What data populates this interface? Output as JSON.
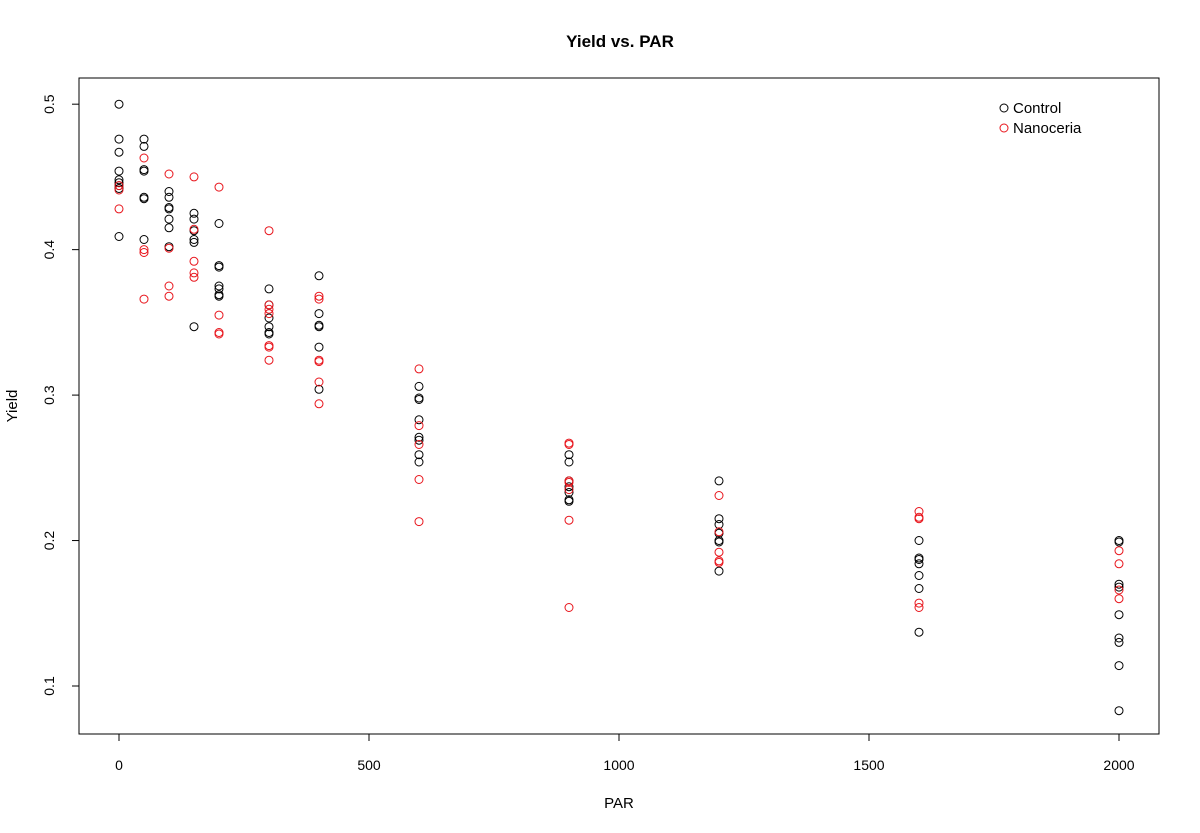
{
  "chart_data": {
    "type": "scatter",
    "title": "Yield vs. PAR",
    "xlabel": "PAR",
    "ylabel": "Yield",
    "xlim": [
      -80,
      2080
    ],
    "ylim": [
      0.067,
      0.518
    ],
    "xticks": [
      0,
      500,
      1000,
      1500,
      2000
    ],
    "xtick_labels": [
      "0",
      "500",
      "1000",
      "1500",
      "2000"
    ],
    "yticks": [
      0.1,
      0.2,
      0.3,
      0.4,
      0.5
    ],
    "ytick_labels": [
      "0.1",
      "0.2",
      "0.3",
      "0.4",
      "0.5"
    ],
    "grid": false,
    "legend": {
      "position": "top-right"
    },
    "series": [
      {
        "name": "Control",
        "color": "#000000",
        "points": [
          [
            0,
            0.5
          ],
          [
            0,
            0.476
          ],
          [
            0,
            0.467
          ],
          [
            0,
            0.454
          ],
          [
            0,
            0.448
          ],
          [
            0,
            0.446
          ],
          [
            0,
            0.444
          ],
          [
            0,
            0.442
          ],
          [
            0,
            0.409
          ],
          [
            50,
            0.476
          ],
          [
            50,
            0.471
          ],
          [
            50,
            0.455
          ],
          [
            50,
            0.454
          ],
          [
            50,
            0.436
          ],
          [
            50,
            0.435
          ],
          [
            50,
            0.407
          ],
          [
            100,
            0.44
          ],
          [
            100,
            0.436
          ],
          [
            100,
            0.429
          ],
          [
            100,
            0.428
          ],
          [
            100,
            0.421
          ],
          [
            100,
            0.415
          ],
          [
            100,
            0.402
          ],
          [
            150,
            0.425
          ],
          [
            150,
            0.421
          ],
          [
            150,
            0.413
          ],
          [
            150,
            0.407
          ],
          [
            150,
            0.405
          ],
          [
            150,
            0.347
          ],
          [
            200,
            0.418
          ],
          [
            200,
            0.389
          ],
          [
            200,
            0.388
          ],
          [
            200,
            0.375
          ],
          [
            200,
            0.373
          ],
          [
            200,
            0.369
          ],
          [
            200,
            0.368
          ],
          [
            300,
            0.373
          ],
          [
            300,
            0.362
          ],
          [
            300,
            0.353
          ],
          [
            300,
            0.347
          ],
          [
            300,
            0.343
          ],
          [
            300,
            0.342
          ],
          [
            400,
            0.382
          ],
          [
            400,
            0.356
          ],
          [
            400,
            0.348
          ],
          [
            400,
            0.347
          ],
          [
            400,
            0.333
          ],
          [
            400,
            0.304
          ],
          [
            600,
            0.306
          ],
          [
            600,
            0.298
          ],
          [
            600,
            0.297
          ],
          [
            600,
            0.283
          ],
          [
            600,
            0.271
          ],
          [
            600,
            0.269
          ],
          [
            600,
            0.259
          ],
          [
            600,
            0.254
          ],
          [
            900,
            0.259
          ],
          [
            900,
            0.254
          ],
          [
            900,
            0.241
          ],
          [
            900,
            0.237
          ],
          [
            900,
            0.233
          ],
          [
            900,
            0.228
          ],
          [
            900,
            0.227
          ],
          [
            1200,
            0.241
          ],
          [
            1200,
            0.215
          ],
          [
            1200,
            0.211
          ],
          [
            1200,
            0.205
          ],
          [
            1200,
            0.2
          ],
          [
            1200,
            0.199
          ],
          [
            1200,
            0.179
          ],
          [
            1600,
            0.2
          ],
          [
            1600,
            0.188
          ],
          [
            1600,
            0.187
          ],
          [
            1600,
            0.184
          ],
          [
            1600,
            0.176
          ],
          [
            1600,
            0.167
          ],
          [
            1600,
            0.137
          ],
          [
            2000,
            0.2
          ],
          [
            2000,
            0.199
          ],
          [
            2000,
            0.17
          ],
          [
            2000,
            0.168
          ],
          [
            2000,
            0.149
          ],
          [
            2000,
            0.133
          ],
          [
            2000,
            0.13
          ],
          [
            2000,
            0.114
          ],
          [
            2000,
            0.083
          ]
        ]
      },
      {
        "name": "Nanoceria",
        "color": "#e8141b",
        "points": [
          [
            0,
            0.444
          ],
          [
            0,
            0.441
          ],
          [
            0,
            0.428
          ],
          [
            50,
            0.463
          ],
          [
            50,
            0.4
          ],
          [
            50,
            0.398
          ],
          [
            50,
            0.366
          ],
          [
            100,
            0.452
          ],
          [
            100,
            0.401
          ],
          [
            100,
            0.375
          ],
          [
            100,
            0.368
          ],
          [
            150,
            0.45
          ],
          [
            150,
            0.414
          ],
          [
            150,
            0.392
          ],
          [
            150,
            0.384
          ],
          [
            150,
            0.381
          ],
          [
            200,
            0.443
          ],
          [
            200,
            0.355
          ],
          [
            200,
            0.343
          ],
          [
            200,
            0.342
          ],
          [
            300,
            0.413
          ],
          [
            300,
            0.362
          ],
          [
            300,
            0.359
          ],
          [
            300,
            0.356
          ],
          [
            300,
            0.334
          ],
          [
            300,
            0.333
          ],
          [
            300,
            0.324
          ],
          [
            400,
            0.368
          ],
          [
            400,
            0.366
          ],
          [
            400,
            0.324
          ],
          [
            400,
            0.323
          ],
          [
            400,
            0.309
          ],
          [
            400,
            0.294
          ],
          [
            600,
            0.318
          ],
          [
            600,
            0.279
          ],
          [
            600,
            0.266
          ],
          [
            600,
            0.242
          ],
          [
            600,
            0.213
          ],
          [
            900,
            0.267
          ],
          [
            900,
            0.266
          ],
          [
            900,
            0.241
          ],
          [
            900,
            0.24
          ],
          [
            900,
            0.235
          ],
          [
            900,
            0.214
          ],
          [
            900,
            0.154
          ],
          [
            1200,
            0.231
          ],
          [
            1200,
            0.206
          ],
          [
            1200,
            0.192
          ],
          [
            1200,
            0.186
          ],
          [
            1200,
            0.185
          ],
          [
            1600,
            0.22
          ],
          [
            1600,
            0.216
          ],
          [
            1600,
            0.215
          ],
          [
            1600,
            0.157
          ],
          [
            1600,
            0.154
          ],
          [
            2000,
            0.193
          ],
          [
            2000,
            0.184
          ],
          [
            2000,
            0.166
          ],
          [
            2000,
            0.16
          ]
        ]
      }
    ]
  }
}
